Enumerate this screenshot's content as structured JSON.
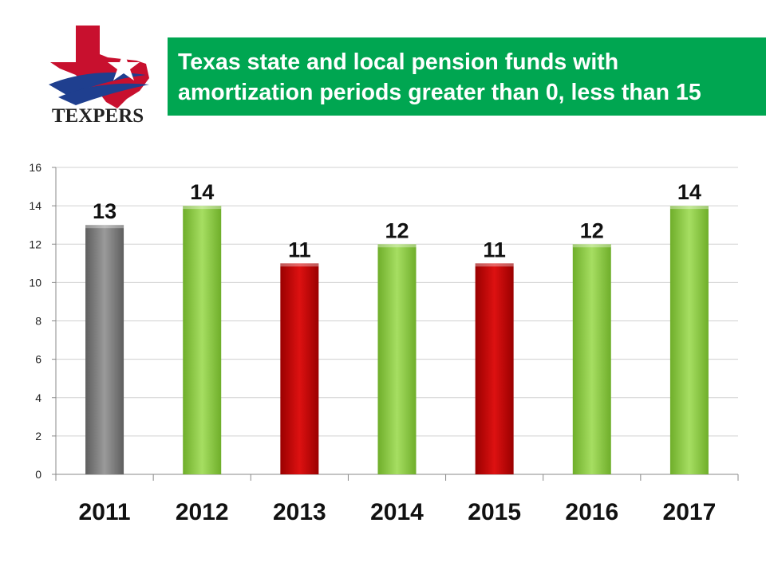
{
  "logo": {
    "text": "TEXPERS",
    "icon": "texas-map-star-icon"
  },
  "title": {
    "line1": "Texas state and local pension funds with",
    "line2": "amortization periods greater than 0, less than 15"
  },
  "colors": {
    "title_bg": "#00a651",
    "green": "#92d050",
    "red": "#c00000",
    "gray": "#7f7f7f"
  },
  "chart_data": {
    "type": "bar",
    "categories": [
      "2011",
      "2012",
      "2013",
      "2014",
      "2015",
      "2016",
      "2017"
    ],
    "values": [
      13,
      14,
      11,
      12,
      11,
      12,
      14
    ],
    "bar_colors": [
      "gray",
      "green",
      "red",
      "green",
      "red",
      "green",
      "green"
    ],
    "ylim": [
      0,
      16
    ],
    "yticks": [
      0,
      2,
      4,
      6,
      8,
      10,
      12,
      14,
      16
    ],
    "grid": true,
    "data_labels": true,
    "legend": "none"
  }
}
